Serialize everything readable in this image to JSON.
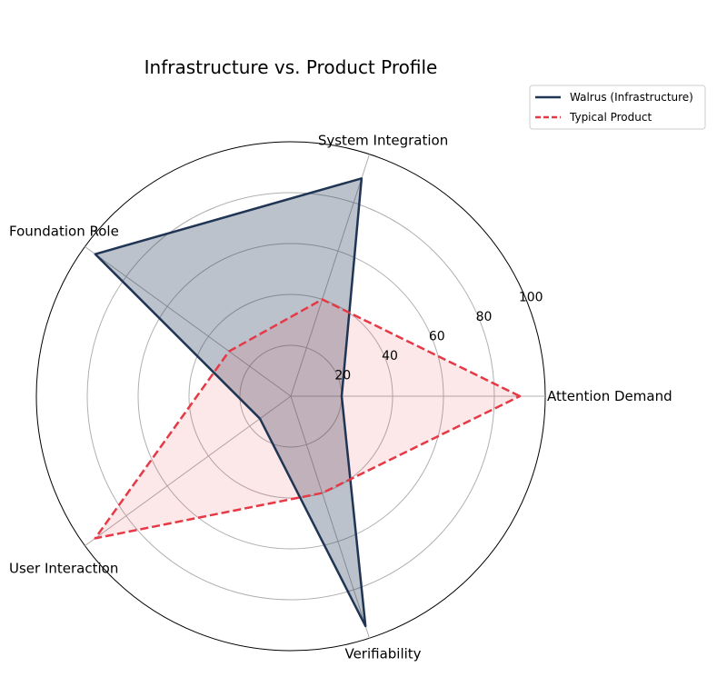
{
  "chart_data": {
    "type": "radar",
    "title": "Infrastructure vs. Product Profile",
    "categories": [
      "Attention Demand",
      "System Integration",
      "Foundation Role",
      "User Interaction",
      "Verifiability"
    ],
    "rlim": [
      0,
      100
    ],
    "rticks": [
      20,
      40,
      60,
      80,
      100
    ],
    "grid": true,
    "legend_position": "top-right",
    "series": [
      {
        "name": "Walrus (Infrastructure)",
        "values": [
          20,
          90,
          95,
          15,
          95
        ],
        "color": "#1f3553",
        "fill": "#1f3553",
        "line_style": "solid"
      },
      {
        "name": "Typical Product",
        "values": [
          90,
          40,
          30,
          95,
          40
        ],
        "color": "#e63946",
        "fill": "#e63946",
        "line_style": "dashed"
      }
    ]
  }
}
